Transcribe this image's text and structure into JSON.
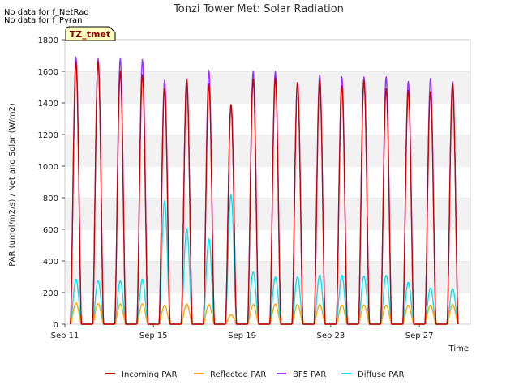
{
  "notes": [
    "No data for f_NetRad",
    "No data for f_Pyran"
  ],
  "badge": "TZ_tmet",
  "chart_data": {
    "type": "line",
    "title": "Tonzi Tower Met: Solar Radiation",
    "xlabel": "Time",
    "ylabel": "PAR (umol/m2/s) / Net and Solar (W/m2)",
    "x_unit": "day of September",
    "xlim": [
      11,
      29.3
    ],
    "ylim": [
      0,
      1800
    ],
    "yticks": [
      0,
      200,
      400,
      600,
      800,
      1000,
      1200,
      1400,
      1600,
      1800
    ],
    "xticks": [
      {
        "value": 11,
        "label": "Sep 11"
      },
      {
        "value": 15,
        "label": "Sep 15"
      },
      {
        "value": 19,
        "label": "Sep 19"
      },
      {
        "value": 23,
        "label": "Sep 23"
      },
      {
        "value": 27,
        "label": "Sep 27"
      }
    ],
    "grid": "horizontal bands",
    "legend_position": "bottom",
    "daily_peaks": {
      "days": [
        11,
        12,
        13,
        14,
        15,
        16,
        17,
        18,
        19,
        20,
        21,
        22,
        23,
        24,
        25,
        26,
        27,
        28
      ],
      "series": [
        {
          "name": "Incoming PAR",
          "color": "#cc0000",
          "values": [
            1660,
            1660,
            1600,
            1580,
            1490,
            1550,
            1520,
            1390,
            1550,
            1560,
            1530,
            1540,
            1510,
            1540,
            1490,
            1480,
            1470,
            1520
          ]
        },
        {
          "name": "Reflected PAR",
          "color": "#ffa500",
          "values": [
            135,
            130,
            128,
            130,
            120,
            128,
            125,
            60,
            125,
            128,
            125,
            125,
            122,
            122,
            122,
            120,
            122,
            125
          ]
        },
        {
          "name": "BF5 PAR",
          "color": "#9b30ff",
          "values": [
            1690,
            1680,
            1680,
            1675,
            1545,
            1555,
            1605,
            1380,
            1600,
            1600,
            1530,
            1575,
            1565,
            1565,
            1565,
            1535,
            1555,
            1535
          ]
        },
        {
          "name": "Diffuse PAR",
          "color": "#00e5ee",
          "values": [
            285,
            275,
            275,
            285,
            780,
            610,
            540,
            820,
            330,
            300,
            300,
            310,
            310,
            305,
            310,
            265,
            230,
            225
          ]
        }
      ]
    }
  }
}
